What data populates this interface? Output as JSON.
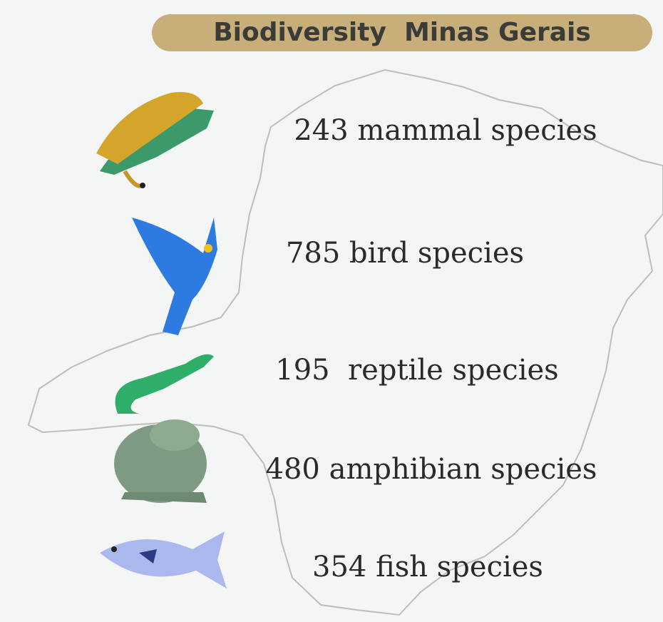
{
  "header": {
    "title": "Biodiversity  Minas Gerais"
  },
  "items": [
    {
      "text": "243 mammal species"
    },
    {
      "text": "785 bird species"
    },
    {
      "text": "195  reptile species"
    },
    {
      "text": "480 amphibian species"
    },
    {
      "text": "354 fish species"
    }
  ]
}
